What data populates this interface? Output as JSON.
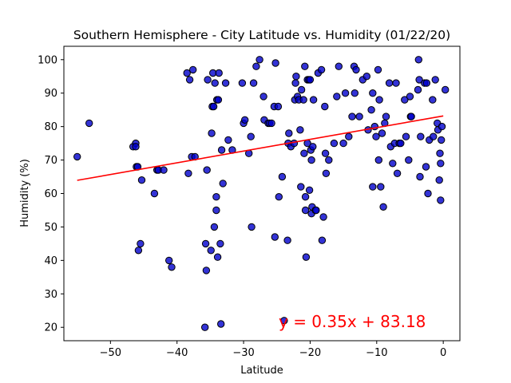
{
  "chart_data": {
    "type": "scatter",
    "title": "Southern Hemisphere - City Latitude vs. Humidity (01/22/20)",
    "xlabel": "Latitude",
    "ylabel": "Humidity (%)",
    "xlim": [
      -57,
      2.5
    ],
    "ylim": [
      16,
      104
    ],
    "x_ticks": [
      -50,
      -40,
      -30,
      -20,
      -10,
      0
    ],
    "y_ticks": [
      20,
      30,
      40,
      50,
      60,
      70,
      80,
      90,
      100
    ],
    "grid": false,
    "marker_color": "#0000cc",
    "marker_edge": "#000000",
    "regression": {
      "slope": 0.35,
      "intercept": 83.18,
      "x_range": [
        -55,
        0
      ],
      "color": "#ff0000",
      "equation": "y = 0.35x + 83.18"
    },
    "points": [
      [
        -55,
        71
      ],
      [
        -53.2,
        81
      ],
      [
        -46.6,
        74
      ],
      [
        -46.2,
        75
      ],
      [
        -46.2,
        74
      ],
      [
        -46.1,
        68
      ],
      [
        -45.9,
        68
      ],
      [
        -45.8,
        43
      ],
      [
        -45.5,
        45
      ],
      [
        -45.3,
        64
      ],
      [
        -43.4,
        60
      ],
      [
        -43,
        67
      ],
      [
        -42.8,
        67
      ],
      [
        -42,
        67
      ],
      [
        -41.2,
        40
      ],
      [
        -40.8,
        38
      ],
      [
        -38.5,
        96
      ],
      [
        -38.3,
        66
      ],
      [
        -38.1,
        94
      ],
      [
        -37.8,
        71
      ],
      [
        -37.6,
        97
      ],
      [
        -37.3,
        71
      ],
      [
        -35.8,
        20
      ],
      [
        -35.7,
        45
      ],
      [
        -35.6,
        37
      ],
      [
        -35.5,
        67
      ],
      [
        -35.4,
        94
      ],
      [
        -34.9,
        43
      ],
      [
        -34.8,
        78
      ],
      [
        -34.7,
        86
      ],
      [
        -34.6,
        96
      ],
      [
        -34.5,
        86
      ],
      [
        -34.4,
        50
      ],
      [
        -34.3,
        93
      ],
      [
        -34.1,
        55
      ],
      [
        -34.1,
        59
      ],
      [
        -34,
        88
      ],
      [
        -33.9,
        41
      ],
      [
        -33.8,
        88
      ],
      [
        -33.7,
        96
      ],
      [
        -33.5,
        45
      ],
      [
        -33.4,
        21
      ],
      [
        -33.3,
        73
      ],
      [
        -33.1,
        63
      ],
      [
        -32.7,
        93
      ],
      [
        -32.3,
        76
      ],
      [
        -31.7,
        73
      ],
      [
        -30.2,
        93
      ],
      [
        -30,
        81
      ],
      [
        -29.8,
        82
      ],
      [
        -29.2,
        72
      ],
      [
        -28.9,
        77
      ],
      [
        -28.8,
        50
      ],
      [
        -28.5,
        93
      ],
      [
        -28.1,
        98
      ],
      [
        -27.6,
        100
      ],
      [
        -27,
        89
      ],
      [
        -26.9,
        82
      ],
      [
        -26.3,
        81
      ],
      [
        -26.1,
        81
      ],
      [
        -25.8,
        81
      ],
      [
        -25.4,
        86
      ],
      [
        -25.3,
        47
      ],
      [
        -25.2,
        99
      ],
      [
        -24.8,
        86
      ],
      [
        -24.7,
        59
      ],
      [
        -24.2,
        65
      ],
      [
        -23.9,
        22
      ],
      [
        -23.4,
        46
      ],
      [
        -23.3,
        75
      ],
      [
        -23.2,
        78
      ],
      [
        -22.9,
        74
      ],
      [
        -22.4,
        75
      ],
      [
        -22.3,
        88
      ],
      [
        -22.2,
        93
      ],
      [
        -22.1,
        95
      ],
      [
        -21.9,
        89
      ],
      [
        -21.7,
        88
      ],
      [
        -21.5,
        79
      ],
      [
        -21.4,
        62
      ],
      [
        -21.3,
        91
      ],
      [
        -21,
        88
      ],
      [
        -20.9,
        72
      ],
      [
        -20.8,
        98
      ],
      [
        -20.7,
        59
      ],
      [
        -20.7,
        55
      ],
      [
        -20.6,
        41
      ],
      [
        -20.4,
        94
      ],
      [
        -20.4,
        75
      ],
      [
        -20.2,
        94
      ],
      [
        -20.1,
        61
      ],
      [
        -20,
        94
      ],
      [
        -19.9,
        73
      ],
      [
        -19.8,
        70
      ],
      [
        -19.8,
        54
      ],
      [
        -19.7,
        56
      ],
      [
        -19.6,
        74
      ],
      [
        -19.5,
        88
      ],
      [
        -19.2,
        55
      ],
      [
        -19.1,
        55
      ],
      [
        -18.8,
        96
      ],
      [
        -18.3,
        97
      ],
      [
        -18.2,
        46
      ],
      [
        -18,
        53
      ],
      [
        -17.8,
        86
      ],
      [
        -17.7,
        72
      ],
      [
        -17.6,
        66
      ],
      [
        -17.2,
        70
      ],
      [
        -16.4,
        75
      ],
      [
        -16,
        89
      ],
      [
        -15.7,
        98
      ],
      [
        -15,
        75
      ],
      [
        -14.7,
        90
      ],
      [
        -14.2,
        77
      ],
      [
        -13.7,
        83
      ],
      [
        -13.4,
        98
      ],
      [
        -13.3,
        90
      ],
      [
        -13.1,
        97
      ],
      [
        -12.6,
        83
      ],
      [
        -12.1,
        94
      ],
      [
        -11.5,
        95
      ],
      [
        -11.3,
        79
      ],
      [
        -10.8,
        85
      ],
      [
        -10.6,
        90
      ],
      [
        -10.6,
        62
      ],
      [
        -10.3,
        80
      ],
      [
        -10.1,
        77
      ],
      [
        -9.8,
        97
      ],
      [
        -9.7,
        70
      ],
      [
        -9.6,
        88
      ],
      [
        -9.4,
        62
      ],
      [
        -9.2,
        78
      ],
      [
        -9,
        56
      ],
      [
        -8.8,
        81
      ],
      [
        -8.6,
        83
      ],
      [
        -8.1,
        93
      ],
      [
        -7.9,
        74
      ],
      [
        -7.6,
        69
      ],
      [
        -7.3,
        75
      ],
      [
        -7.1,
        93
      ],
      [
        -6.9,
        66
      ],
      [
        -6.6,
        75
      ],
      [
        -6.4,
        75
      ],
      [
        -5.8,
        88
      ],
      [
        -5.6,
        77
      ],
      [
        -5.2,
        70
      ],
      [
        -5,
        89
      ],
      [
        -4.9,
        83
      ],
      [
        -4.8,
        83
      ],
      [
        -3.8,
        91
      ],
      [
        -3.7,
        100
      ],
      [
        -3.6,
        94
      ],
      [
        -3.4,
        77
      ],
      [
        -3.5,
        65
      ],
      [
        -2.8,
        93
      ],
      [
        -2.6,
        68
      ],
      [
        -2.5,
        93
      ],
      [
        -2.3,
        60
      ],
      [
        -2.1,
        76
      ],
      [
        -1.6,
        88
      ],
      [
        -1.5,
        77
      ],
      [
        -1.2,
        94
      ],
      [
        -0.9,
        81
      ],
      [
        -0.8,
        79
      ],
      [
        -0.6,
        64
      ],
      [
        -0.5,
        72
      ],
      [
        -0.4,
        58
      ],
      [
        -0.4,
        69
      ],
      [
        -0.3,
        76
      ],
      [
        -0.2,
        80
      ],
      [
        0.3,
        91
      ]
    ]
  }
}
